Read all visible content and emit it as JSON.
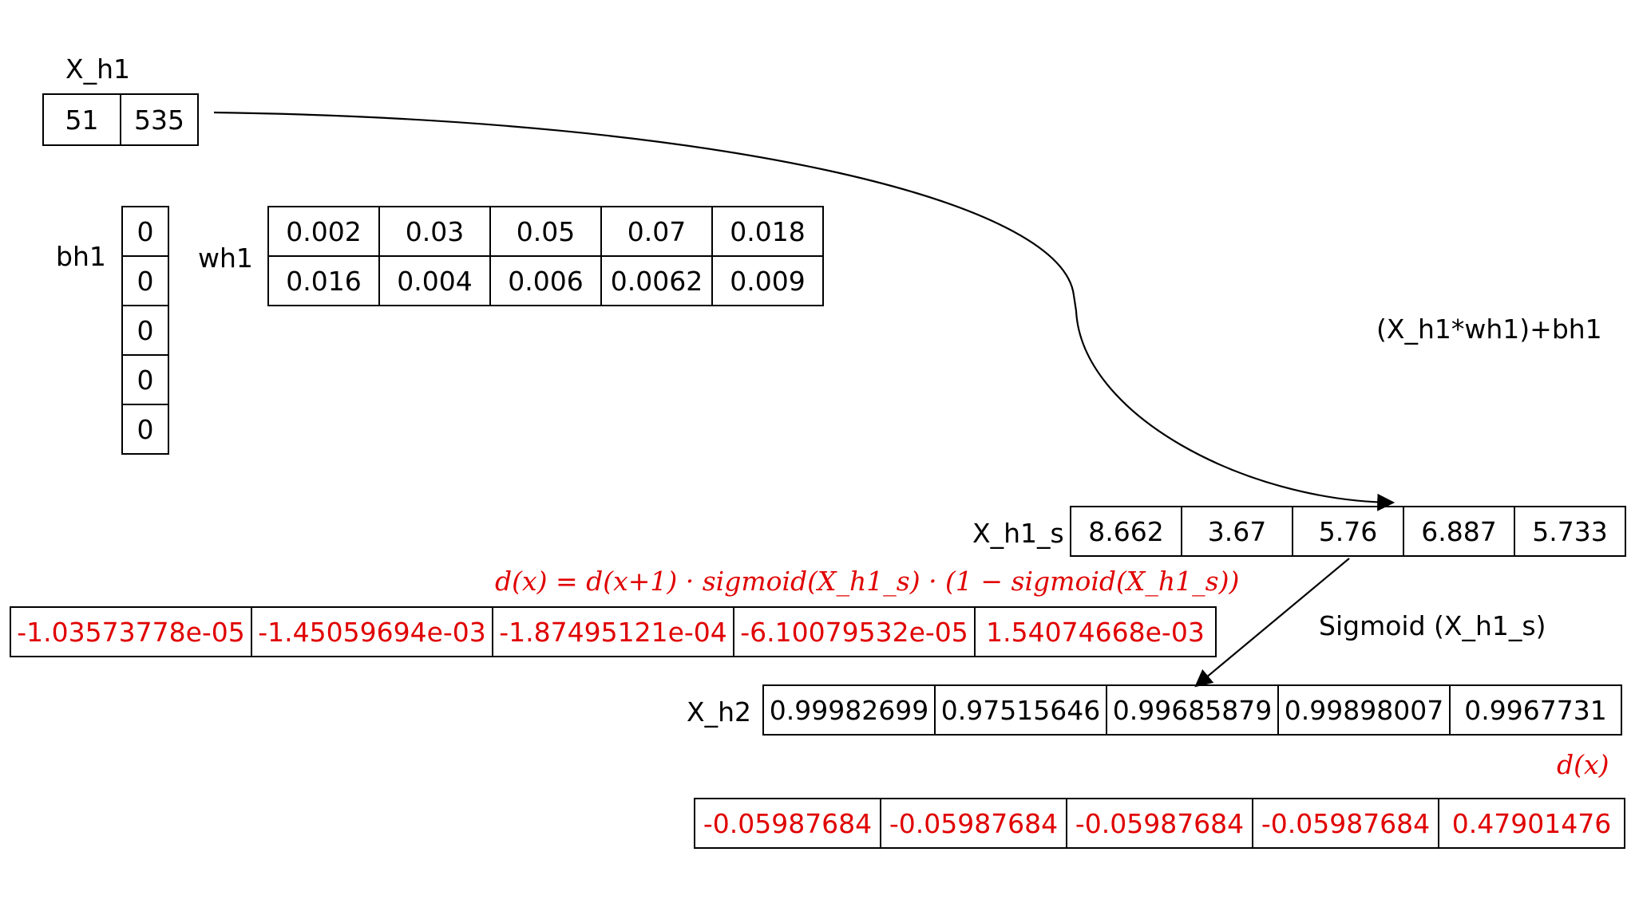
{
  "x_h1": {
    "label": "X_h1",
    "values": [
      "51",
      "535"
    ]
  },
  "bh1": {
    "label": "bh1",
    "values": [
      "0",
      "0",
      "0",
      "0",
      "0"
    ]
  },
  "wh1": {
    "label": "wh1",
    "rows": [
      [
        "0.002",
        "0.03",
        "0.05",
        "0.07",
        "0.018"
      ],
      [
        "0.016",
        "0.004",
        "0.006",
        "0.0062",
        "0.009"
      ]
    ]
  },
  "op_label": "(X_h1*wh1)+bh1",
  "x_h1_s": {
    "label": "X_h1_s",
    "values": [
      "8.662",
      "3.67",
      "5.76",
      "6.887",
      "5.733"
    ]
  },
  "formula": "d(x) = d(x+1) · sigmoid(X_h1_s) · (1 − sigmoid(X_h1_s))",
  "grad_h1": {
    "values": [
      "-1.03573778e-05",
      "-1.45059694e-03",
      "-1.87495121e-04",
      "-6.10079532e-05",
      "1.54074668e-03"
    ]
  },
  "sigmoid_label": "Sigmoid (X_h1_s)",
  "x_h2": {
    "label": "X_h2",
    "values": [
      "0.99982699",
      "0.97515646",
      "0.99685879",
      "0.99898007",
      "0.9967731"
    ]
  },
  "dx_label": "d(x)",
  "grad_h2": {
    "values": [
      "-0.05987684",
      "-0.05987684",
      "-0.05987684",
      "-0.05987684",
      "0.47901476"
    ]
  },
  "colors": {
    "red": "#e00000",
    "black": "#000000"
  }
}
